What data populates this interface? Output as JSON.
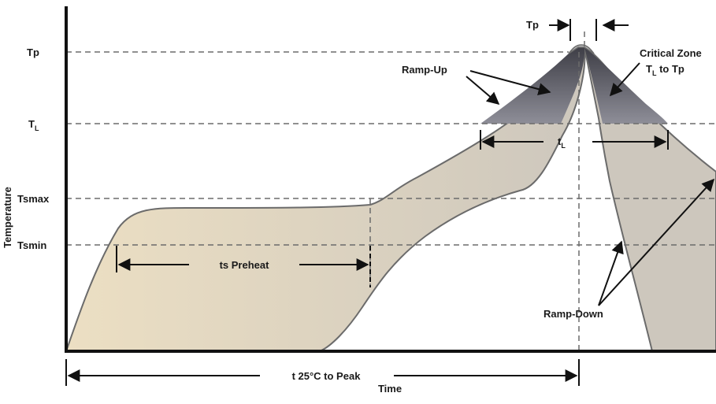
{
  "diagram": {
    "y_axis_label": "Temperature",
    "x_axis_label": "Time",
    "y_levels": [
      {
        "key": "tp",
        "label": "Tp",
        "sub": ""
      },
      {
        "key": "tl",
        "label": "T",
        "sub": "L"
      },
      {
        "key": "tsmax",
        "label": "Tsmax",
        "sub": ""
      },
      {
        "key": "tsmin",
        "label": "Tsmin",
        "sub": ""
      }
    ],
    "annotations": {
      "tp_width": "Tp",
      "ramp_up": "Ramp-Up",
      "critical_zone_line1": "Critical Zone",
      "critical_zone_line2_pre": "T",
      "critical_zone_line2_sub": "L",
      "critical_zone_line2_post": " to Tp",
      "tl_span_main": "t",
      "tl_span_sub": "L",
      "preheat": "ts Preheat",
      "ramp_down": "Ramp-Down",
      "t25_to_peak": "t 25°C to Peak"
    },
    "colors": {
      "band_left": "#e9dcc0",
      "band_right": "#cfc8bd",
      "critical_top": "#4a4a52",
      "critical_bottom": "#8a8a94",
      "outline": "#6b6b6b",
      "axis": "#111111",
      "dashed": "#6b6b6b"
    }
  }
}
